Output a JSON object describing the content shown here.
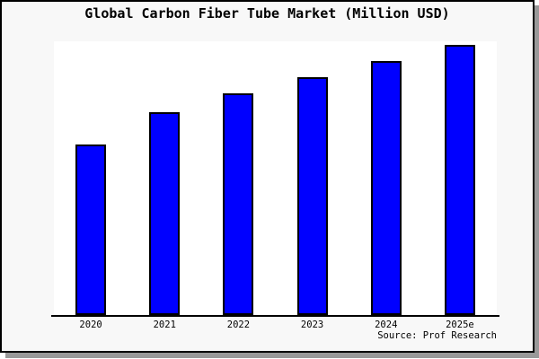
{
  "window": {
    "panel_bg": "#f8f8f8",
    "plot_bg": "#ffffff",
    "frame_color": "#000000",
    "shadow_color": "#999999"
  },
  "title": "Global Carbon Fiber Tube Market (Million USD)",
  "footer": {
    "source": "Source: Prof Research"
  },
  "chart_data": {
    "type": "bar",
    "title": "Global Carbon Fiber Tube Market (Million USD)",
    "categories": [
      "2020",
      "2021",
      "2022",
      "2023",
      "2024",
      "2025e"
    ],
    "values": [
      63,
      75,
      82,
      88,
      94,
      100
    ],
    "values_note": "No y-axis scale is shown in the image; values are relative estimates with tallest bar (2025e) = 100.",
    "xlabel": "",
    "ylabel": "",
    "ylim": [
      0,
      101.3
    ],
    "grid": false,
    "legend": false,
    "bar_color": "#0000ff",
    "bar_edge_color": "#000000"
  }
}
